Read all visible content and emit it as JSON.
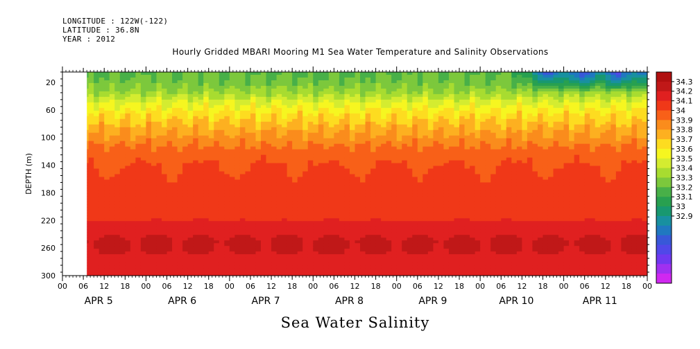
{
  "header": {
    "longitude": "LONGITUDE : 122W(-122)",
    "latitude": "LATITUDE : 36.8N",
    "year": "YEAR : 2012"
  },
  "footer_label": "Sea Water Salinity",
  "chart_data": {
    "type": "heatmap",
    "title": "Hourly Gridded MBARI Mooring M1 Sea Water Temperature and Salinity Observations",
    "xlabel": "",
    "ylabel": "DEPTH (m)",
    "ylim": [
      300,
      0
    ],
    "y_ticks": [
      20,
      60,
      100,
      140,
      180,
      220,
      260,
      300
    ],
    "y_range_top": 5,
    "hour_ticks": [
      "00",
      "06",
      "12",
      "18",
      "00",
      "06",
      "12",
      "18",
      "00",
      "06",
      "12",
      "18",
      "00",
      "06",
      "12",
      "18",
      "00",
      "06",
      "12",
      "18",
      "00",
      "06",
      "12",
      "18",
      "00",
      "06",
      "12",
      "18",
      "00"
    ],
    "day_labels": [
      "APR 5",
      "APR 6",
      "APR 7",
      "APR 8",
      "APR 9",
      "APR 10",
      "APR 11"
    ],
    "x_range_hours": [
      0,
      168
    ],
    "data_start_hour": 7,
    "colorbar": {
      "levels": [
        34.3,
        34.2,
        34.1,
        34,
        33.9,
        33.8,
        33.7,
        33.6,
        33.5,
        33.4,
        33.3,
        33.2,
        33.1,
        33,
        32.9
      ],
      "colors": [
        "#b01010",
        "#c01818",
        "#e02020",
        "#f03818",
        "#f86018",
        "#fa8c1c",
        "#fdb020",
        "#fddc20",
        "#f6f620",
        "#d4ec30",
        "#a8dc30",
        "#7cc83c",
        "#48b048",
        "#28a050",
        "#189870",
        "#1890a0",
        "#2078c0",
        "#3858d8",
        "#5048e8",
        "#7038f0",
        "#a030f0",
        "#d028f0"
      ]
    },
    "profile": {
      "depths": [
        5,
        20,
        35,
        50,
        65,
        80,
        95,
        110,
        125,
        145,
        170,
        195,
        215,
        235,
        250,
        265,
        280,
        300
      ],
      "values": [
        33.52,
        33.55,
        33.62,
        33.74,
        33.83,
        33.9,
        33.96,
        34.02,
        34.07,
        34.11,
        34.13,
        34.13,
        34.16,
        34.21,
        34.26,
        34.25,
        34.2,
        34.17
      ]
    },
    "fresh_event": {
      "start_hour": 128,
      "peak_hour": 140,
      "min_value": 33.08,
      "depth_extent": 30
    }
  }
}
